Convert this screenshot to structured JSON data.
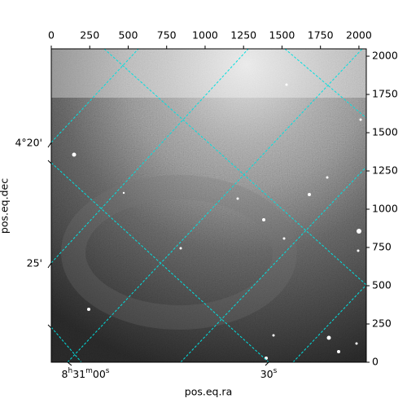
{
  "chart_data": {
    "type": "image",
    "xlim": [
      0,
      2048
    ],
    "ylim": [
      0,
      2048
    ],
    "xticks": [
      0,
      250,
      500,
      750,
      1000,
      1250,
      1500,
      1750,
      2000
    ],
    "yticks": [
      0,
      250,
      500,
      750,
      1000,
      1250,
      1500,
      1750,
      2000
    ],
    "xlabel": "pos.eq.ra",
    "ylabel": "pos.eq.dec",
    "world_xticks": [
      "8h31m00s",
      "30s"
    ],
    "world_yticks": [
      "4°20'",
      "25'"
    ],
    "grid_color": "#00e0e0"
  }
}
